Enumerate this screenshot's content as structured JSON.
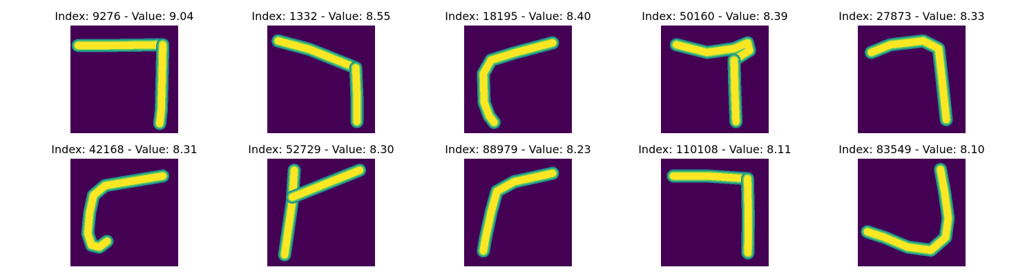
{
  "figure": {
    "background_color": "#ffffff",
    "image_background_color": "#440154",
    "stroke_colors": [
      "#21918c",
      "#5ec962",
      "#fde725"
    ]
  },
  "panels": [
    {
      "title": "Index: 9276 - Value: 9.04",
      "strokes": [
        [
          [
            2.0,
            5.2
          ],
          [
            9.8,
            5.2
          ],
          [
            24.0,
            5.0
          ]
        ],
        [
          [
            24.0,
            5.0
          ],
          [
            23.8,
            14.5
          ],
          [
            23.6,
            22.0
          ],
          [
            23.2,
            25.5
          ]
        ]
      ]
    },
    {
      "title": "Index: 1332 - Value: 8.55",
      "strokes": [
        [
          [
            2.8,
            4.0
          ],
          [
            11.0,
            6.2
          ],
          [
            23.0,
            11.0
          ]
        ],
        [
          [
            23.0,
            11.0
          ],
          [
            23.3,
            18.5
          ],
          [
            23.3,
            25.0
          ]
        ]
      ]
    },
    {
      "title": "Index: 18195 - Value: 8.40",
      "strokes": [
        [
          [
            23.0,
            4.5
          ],
          [
            13.5,
            7.0
          ],
          [
            7.0,
            9.0
          ],
          [
            5.0,
            12.5
          ],
          [
            5.2,
            20.0
          ],
          [
            6.5,
            23.5
          ],
          [
            7.8,
            25.2
          ]
        ]
      ]
    },
    {
      "title": "Index: 50160 - Value: 8.39",
      "strokes": [
        [
          [
            4.0,
            5.0
          ],
          [
            12.0,
            7.0
          ],
          [
            19.0,
            6.0
          ],
          [
            22.5,
            4.5
          ],
          [
            23.0,
            6.5
          ],
          [
            19.0,
            9.0
          ]
        ],
        [
          [
            19.0,
            9.0
          ],
          [
            19.2,
            17.0
          ],
          [
            19.5,
            25.0
          ]
        ]
      ]
    },
    {
      "title": "Index: 27873 - Value: 8.33",
      "strokes": [
        [
          [
            3.5,
            7.0
          ],
          [
            8.5,
            5.0
          ],
          [
            17.0,
            4.0
          ],
          [
            21.0,
            6.0
          ],
          [
            22.0,
            15.0
          ],
          [
            23.0,
            24.5
          ]
        ]
      ]
    },
    {
      "title": "Index: 42168 - Value: 8.31",
      "strokes": [
        [
          [
            24.0,
            4.5
          ],
          [
            15.0,
            6.0
          ],
          [
            9.0,
            7.0
          ],
          [
            6.0,
            9.5
          ],
          [
            5.0,
            14.0
          ],
          [
            4.5,
            19.5
          ],
          [
            5.5,
            22.5
          ],
          [
            7.5,
            23.0
          ],
          [
            9.5,
            21.5
          ]
        ]
      ]
    },
    {
      "title": "Index: 52729 - Value: 8.30",
      "strokes": [
        [
          [
            7.0,
            3.0
          ],
          [
            6.5,
            11.0
          ],
          [
            5.5,
            18.0
          ],
          [
            4.5,
            25.0
          ]
        ],
        [
          [
            6.5,
            10.0
          ],
          [
            14.0,
            7.0
          ],
          [
            24.0,
            3.0
          ]
        ]
      ]
    },
    {
      "title": "Index: 88979 - Value: 8.23",
      "strokes": [
        [
          [
            23.0,
            3.8
          ],
          [
            13.0,
            6.0
          ],
          [
            8.5,
            8.5
          ],
          [
            7.0,
            14.0
          ],
          [
            5.5,
            21.0
          ],
          [
            5.0,
            24.0
          ]
        ]
      ]
    },
    {
      "title": "Index: 110108 - Value: 8.11",
      "strokes": [
        [
          [
            3.2,
            4.5
          ],
          [
            12.0,
            4.5
          ],
          [
            22.5,
            5.2
          ]
        ],
        [
          [
            22.5,
            5.2
          ],
          [
            22.7,
            15.0
          ],
          [
            22.6,
            24.5
          ]
        ]
      ]
    },
    {
      "title": "Index: 83549 - Value: 8.10",
      "strokes": [
        [
          [
            21.5,
            2.8
          ],
          [
            22.6,
            9.0
          ],
          [
            23.5,
            15.5
          ],
          [
            22.8,
            20.5
          ],
          [
            19.0,
            23.8
          ],
          [
            13.0,
            23.0
          ],
          [
            7.0,
            20.5
          ],
          [
            2.5,
            19.0
          ]
        ]
      ]
    }
  ]
}
